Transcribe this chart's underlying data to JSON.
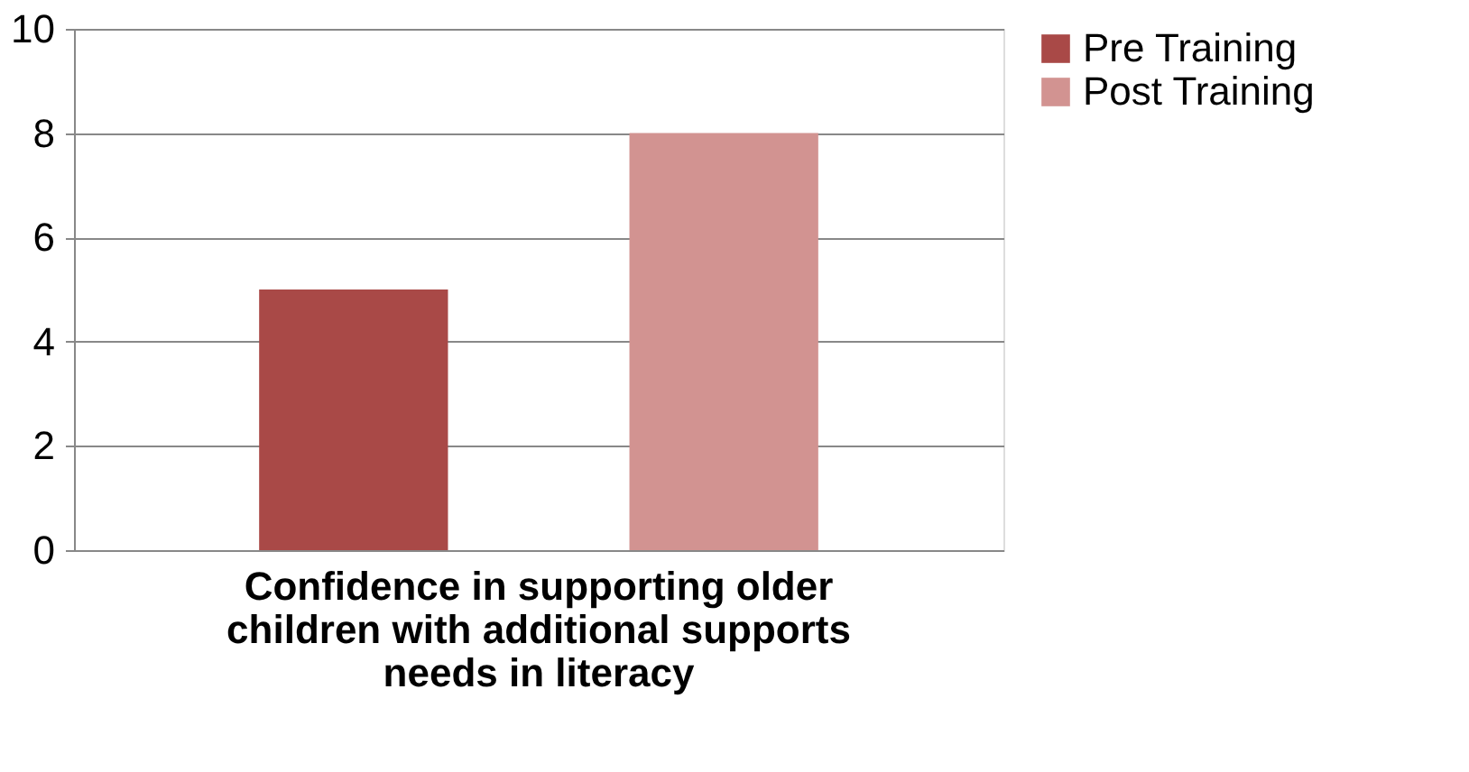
{
  "chart_data": {
    "type": "bar",
    "categories": [
      "Confidence in supporting older children with additional supports needs in literacy"
    ],
    "series": [
      {
        "name": "Pre Training",
        "color": "#a94947",
        "values": [
          5
        ]
      },
      {
        "name": "Post Training",
        "color": "#d29391",
        "values": [
          8
        ]
      }
    ],
    "ylim": [
      0,
      10
    ],
    "yticks": [
      0,
      2,
      4,
      6,
      8,
      10
    ],
    "grid": "y",
    "legend": "right"
  }
}
